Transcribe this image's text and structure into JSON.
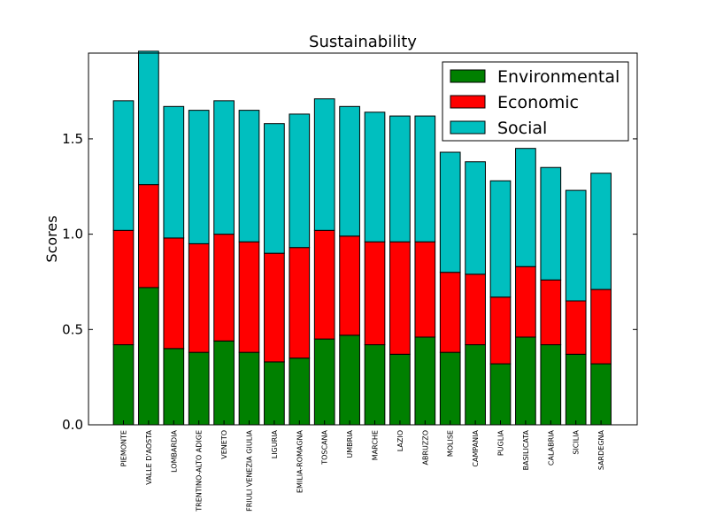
{
  "chart_data": {
    "type": "bar",
    "stacked": true,
    "title": "Sustainability",
    "xlabel": "",
    "ylabel": "Scores",
    "ylim": [
      0,
      1.95
    ],
    "yticks": [
      "0.0",
      "0.5",
      "1.0",
      "1.5"
    ],
    "grid": false,
    "legend_position": "top-right",
    "categories": [
      "PIEMONTE",
      "VALLE D'AOSTA",
      "LOMBARDIA",
      "TRENTINO-ALTO ADIGE",
      "VENETO",
      "FRIULI VENEZIA GIULIA",
      "LIGURIA",
      "EMILIA-ROMAGNA",
      "TOSCANA",
      "UMBRIA",
      "MARCHE",
      "LAZIO",
      "ABRUZZO",
      "MOLISE",
      "CAMPANIA",
      "PUGLIA",
      "BASILICATA",
      "CALABRIA",
      "SICILIA",
      "SARDEGNA"
    ],
    "series": [
      {
        "name": "Environmental",
        "color": "#008000",
        "values": [
          0.42,
          0.72,
          0.4,
          0.38,
          0.44,
          0.38,
          0.33,
          0.35,
          0.45,
          0.47,
          0.42,
          0.37,
          0.46,
          0.38,
          0.42,
          0.32,
          0.46,
          0.42,
          0.37,
          0.32
        ]
      },
      {
        "name": "Economic",
        "color": "#ff0000",
        "values": [
          0.6,
          0.54,
          0.58,
          0.57,
          0.56,
          0.58,
          0.57,
          0.58,
          0.57,
          0.52,
          0.54,
          0.59,
          0.5,
          0.42,
          0.37,
          0.35,
          0.37,
          0.34,
          0.28,
          0.39
        ]
      },
      {
        "name": "Social",
        "color": "#00bfbf",
        "values": [
          0.68,
          0.7,
          0.69,
          0.7,
          0.7,
          0.69,
          0.68,
          0.7,
          0.69,
          0.68,
          0.68,
          0.66,
          0.66,
          0.63,
          0.59,
          0.61,
          0.62,
          0.59,
          0.58,
          0.61
        ]
      }
    ]
  }
}
